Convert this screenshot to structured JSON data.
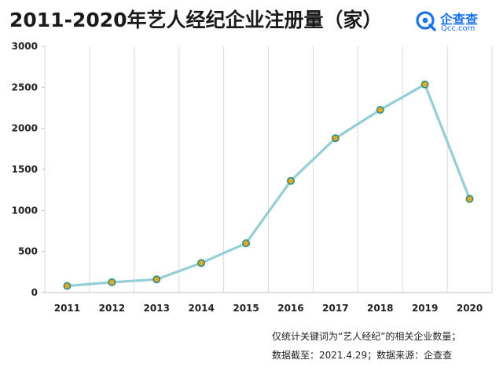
{
  "header": {
    "title": "2011-2020年艺人经纪企业注册量（家）"
  },
  "logo": {
    "name_cn": "企查查",
    "name_en": "Qcc.com",
    "icon": "qcc-logo-icon",
    "color": "#1a73e8"
  },
  "chart_data": {
    "type": "line",
    "title": "2011-2020年艺人经纪企业注册量（家）",
    "xlabel": "",
    "ylabel": "",
    "x": [
      "2011",
      "2012",
      "2013",
      "2014",
      "2015",
      "2016",
      "2017",
      "2018",
      "2019",
      "2020"
    ],
    "series": [
      {
        "name": "艺人经纪企业注册量",
        "values": [
          80,
          125,
          160,
          360,
          600,
          1360,
          1880,
          2225,
          2535,
          1140
        ]
      }
    ],
    "ylim": [
      0,
      3000
    ],
    "yticks": [
      "0",
      "500",
      "1000",
      "1500",
      "2000",
      "2500",
      "3000"
    ],
    "grid": "vertical",
    "line_color": "#93ced6",
    "marker_fill": "#e0a820",
    "marker_stroke": "#2c8c8c"
  },
  "footnote": {
    "line1": "仅统计关键词为“艺人经纪”的相关企业数量；",
    "line2": "数据截至：2021.4.29；数据来源：企查查"
  }
}
